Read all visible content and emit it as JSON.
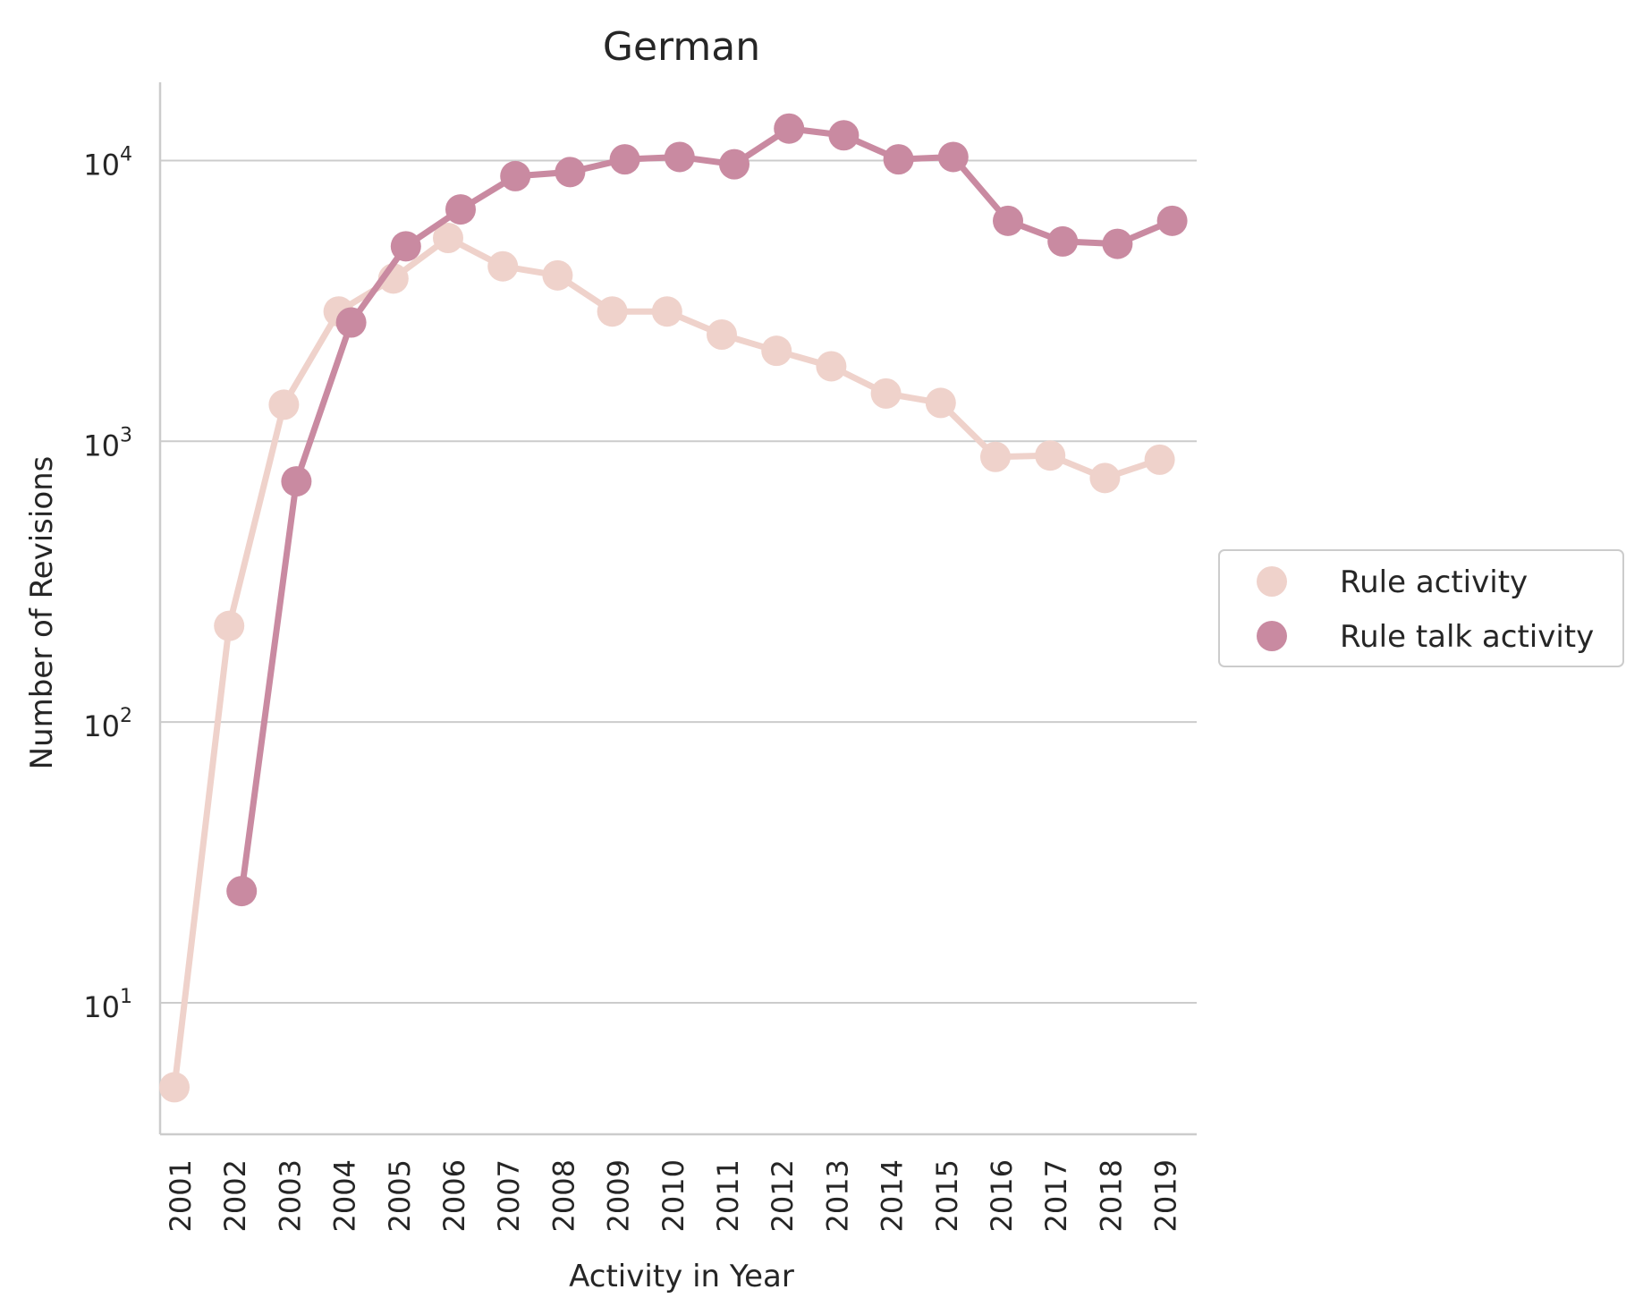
{
  "chart_data": {
    "type": "line",
    "title": "German",
    "xlabel": "Activity in Year",
    "ylabel": "Number of Revisions",
    "yscale": "log",
    "ylim": [
      3.4,
      19000
    ],
    "yticks": [
      {
        "value": 10,
        "base": "10",
        "exp": "1"
      },
      {
        "value": 100,
        "base": "10",
        "exp": "2"
      },
      {
        "value": 1000,
        "base": "10",
        "exp": "3"
      },
      {
        "value": 10000,
        "base": "10",
        "exp": "4"
      }
    ],
    "grid": "horizontal",
    "legend_position": "center-right, outside",
    "categories": [
      "2001",
      "2002",
      "2003",
      "2004",
      "2005",
      "2006",
      "2007",
      "2008",
      "2009",
      "2010",
      "2011",
      "2012",
      "2013",
      "2014",
      "2015",
      "2016",
      "2017",
      "2018",
      "2019"
    ],
    "series": [
      {
        "name": "Rule activity",
        "color": "#efd2cb",
        "values": [
          5,
          220,
          1350,
          2900,
          3800,
          5300,
          4200,
          3900,
          2900,
          2900,
          2400,
          2100,
          1850,
          1480,
          1370,
          880,
          890,
          740,
          860
        ]
      },
      {
        "name": "Rule talk activity",
        "color": "#c98aa1",
        "values": [
          null,
          25,
          720,
          2650,
          4950,
          6700,
          8800,
          9100,
          10100,
          10300,
          9700,
          13000,
          12300,
          10100,
          10300,
          6100,
          5150,
          5050,
          6100
        ]
      }
    ]
  }
}
